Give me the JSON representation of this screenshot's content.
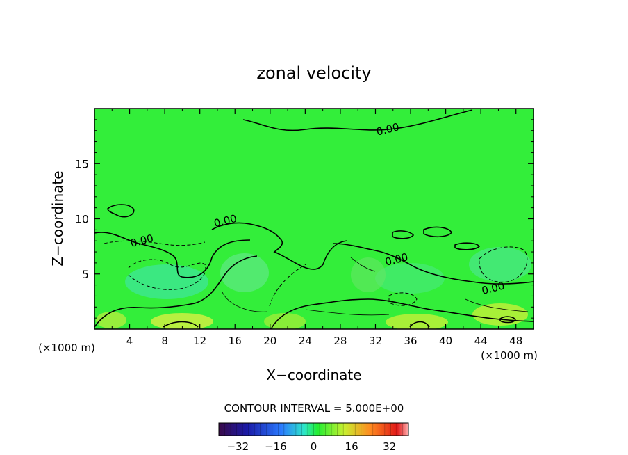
{
  "chart_data": {
    "type": "heatmap",
    "title": "zonal velocity",
    "xlabel": "X−coordinate",
    "ylabel": "Z−coordinate",
    "x_unit_left": "(×1000 m)",
    "x_unit_right": "(×1000 m)",
    "xlim": [
      0,
      50
    ],
    "ylim": [
      0,
      20
    ],
    "x_ticks": [
      4,
      8,
      12,
      16,
      20,
      24,
      28,
      32,
      36,
      40,
      44,
      48
    ],
    "y_ticks": [
      5,
      10,
      15
    ],
    "contour_interval_label": "CONTOUR INTERVAL = 5.000E+00",
    "colorbar": {
      "min": -40,
      "max": 40,
      "ticks": [
        -32,
        -16,
        0,
        16,
        32
      ],
      "tick_labels": [
        "−32",
        "−16",
        "0",
        "16",
        "32"
      ]
    },
    "contour_labels": [
      {
        "text": "0.00",
        "x": 33.5,
        "z": 17.8
      },
      {
        "text": "0.00",
        "x": 15.0,
        "z": 9.5
      },
      {
        "text": "0.00",
        "x": 5.5,
        "z": 7.7
      },
      {
        "text": "0.00",
        "x": 34.5,
        "z": 6.0
      },
      {
        "text": "0.00",
        "x": 45.5,
        "z": 3.4
      }
    ],
    "grid": false
  }
}
